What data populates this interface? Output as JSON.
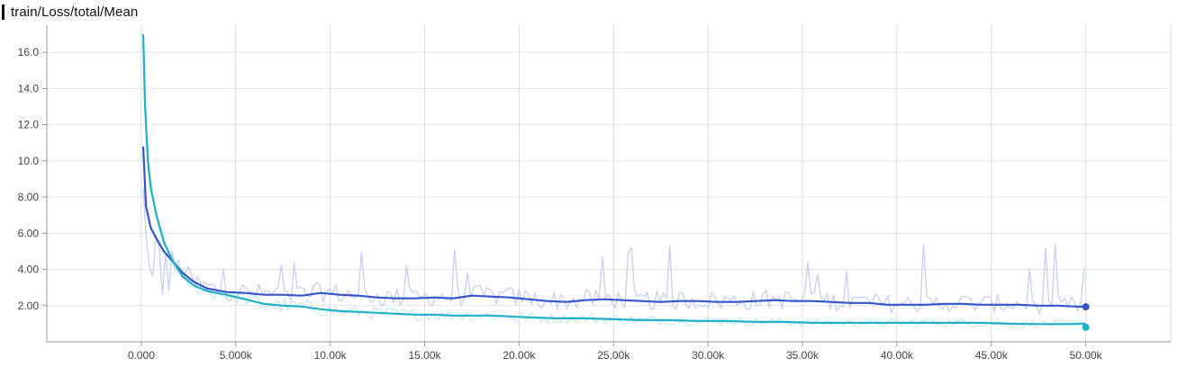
{
  "title": "train/Loss/total/Mean",
  "chart_data": {
    "type": "line",
    "title": "train/Loss/total/Mean",
    "xlabel": "",
    "ylabel": "",
    "xlim": [
      -5000,
      54500
    ],
    "ylim": [
      0,
      17.5
    ],
    "grid": true,
    "x_ticks": [
      0,
      5000,
      10000,
      15000,
      20000,
      25000,
      30000,
      35000,
      40000,
      45000,
      50000
    ],
    "x_tick_labels": [
      "0.000",
      "5.000k",
      "10.00k",
      "15.00k",
      "20.00k",
      "25.00k",
      "30.00k",
      "35.00k",
      "40.00k",
      "45.00k",
      "50.00k"
    ],
    "y_ticks": [
      2,
      4,
      6,
      8,
      10,
      12,
      14,
      16
    ],
    "y_tick_labels": [
      "2.00",
      "4.00",
      "6.00",
      "8.00",
      "10.0",
      "12.0",
      "14.0",
      "16.0"
    ],
    "series": [
      {
        "color": "#3455c9",
        "raw_color": "#c9d3ef",
        "smoothed": [
          [
            100,
            10.8
          ],
          [
            250,
            7.5
          ],
          [
            500,
            6.3
          ],
          [
            800,
            5.7
          ],
          [
            1200,
            5.0
          ],
          [
            1700,
            4.4
          ],
          [
            2200,
            3.8
          ],
          [
            2800,
            3.3
          ],
          [
            3500,
            2.95
          ],
          [
            4500,
            2.75
          ],
          [
            5500,
            2.7
          ],
          [
            6500,
            2.6
          ],
          [
            7500,
            2.6
          ],
          [
            8500,
            2.55
          ],
          [
            9500,
            2.7
          ],
          [
            10500,
            2.6
          ],
          [
            11500,
            2.55
          ],
          [
            12500,
            2.45
          ],
          [
            13500,
            2.4
          ],
          [
            14500,
            2.4
          ],
          [
            15500,
            2.45
          ],
          [
            16500,
            2.4
          ],
          [
            17500,
            2.55
          ],
          [
            18500,
            2.5
          ],
          [
            19500,
            2.45
          ],
          [
            20500,
            2.35
          ],
          [
            21500,
            2.25
          ],
          [
            22500,
            2.2
          ],
          [
            23500,
            2.3
          ],
          [
            24500,
            2.35
          ],
          [
            25500,
            2.3
          ],
          [
            26500,
            2.25
          ],
          [
            27500,
            2.2
          ],
          [
            28500,
            2.25
          ],
          [
            29500,
            2.25
          ],
          [
            30500,
            2.2
          ],
          [
            31500,
            2.2
          ],
          [
            32500,
            2.25
          ],
          [
            33500,
            2.3
          ],
          [
            34500,
            2.25
          ],
          [
            35500,
            2.25
          ],
          [
            36500,
            2.2
          ],
          [
            37500,
            2.15
          ],
          [
            38500,
            2.15
          ],
          [
            39500,
            2.05
          ],
          [
            40500,
            2.05
          ],
          [
            41500,
            2.05
          ],
          [
            42500,
            2.1
          ],
          [
            43500,
            2.1
          ],
          [
            44500,
            2.05
          ],
          [
            45500,
            2.05
          ],
          [
            46500,
            2.05
          ],
          [
            47500,
            2.0
          ],
          [
            48500,
            2.0
          ],
          [
            49500,
            1.95
          ],
          [
            50000,
            1.93
          ]
        ]
      },
      {
        "color": "#21b0c5",
        "raw_color": "#c6eef3",
        "smoothed": [
          [
            100,
            17.0
          ],
          [
            200,
            13.0
          ],
          [
            350,
            10.0
          ],
          [
            500,
            8.5
          ],
          [
            800,
            7.0
          ],
          [
            1200,
            5.5
          ],
          [
            1700,
            4.4
          ],
          [
            2200,
            3.6
          ],
          [
            2800,
            3.1
          ],
          [
            3500,
            2.8
          ],
          [
            4500,
            2.6
          ],
          [
            5500,
            2.35
          ],
          [
            6500,
            2.1
          ],
          [
            7500,
            2.0
          ],
          [
            8500,
            1.95
          ],
          [
            9500,
            1.8
          ],
          [
            10500,
            1.7
          ],
          [
            11500,
            1.65
          ],
          [
            12500,
            1.6
          ],
          [
            13500,
            1.55
          ],
          [
            14500,
            1.5
          ],
          [
            15500,
            1.5
          ],
          [
            16500,
            1.45
          ],
          [
            17500,
            1.45
          ],
          [
            18500,
            1.45
          ],
          [
            19500,
            1.4
          ],
          [
            20500,
            1.35
          ],
          [
            22000,
            1.3
          ],
          [
            23500,
            1.3
          ],
          [
            25000,
            1.25
          ],
          [
            26500,
            1.2
          ],
          [
            28000,
            1.2
          ],
          [
            29500,
            1.15
          ],
          [
            31000,
            1.15
          ],
          [
            32500,
            1.1
          ],
          [
            34000,
            1.1
          ],
          [
            35500,
            1.05
          ],
          [
            37000,
            1.05
          ],
          [
            38500,
            1.05
          ],
          [
            40000,
            1.05
          ],
          [
            41500,
            1.05
          ],
          [
            43000,
            1.05
          ],
          [
            44500,
            1.05
          ],
          [
            46000,
            1.0
          ],
          [
            47500,
            0.98
          ],
          [
            49000,
            0.98
          ],
          [
            50000,
            1.0
          ]
        ],
        "end_marker_value": 0.8
      }
    ]
  }
}
